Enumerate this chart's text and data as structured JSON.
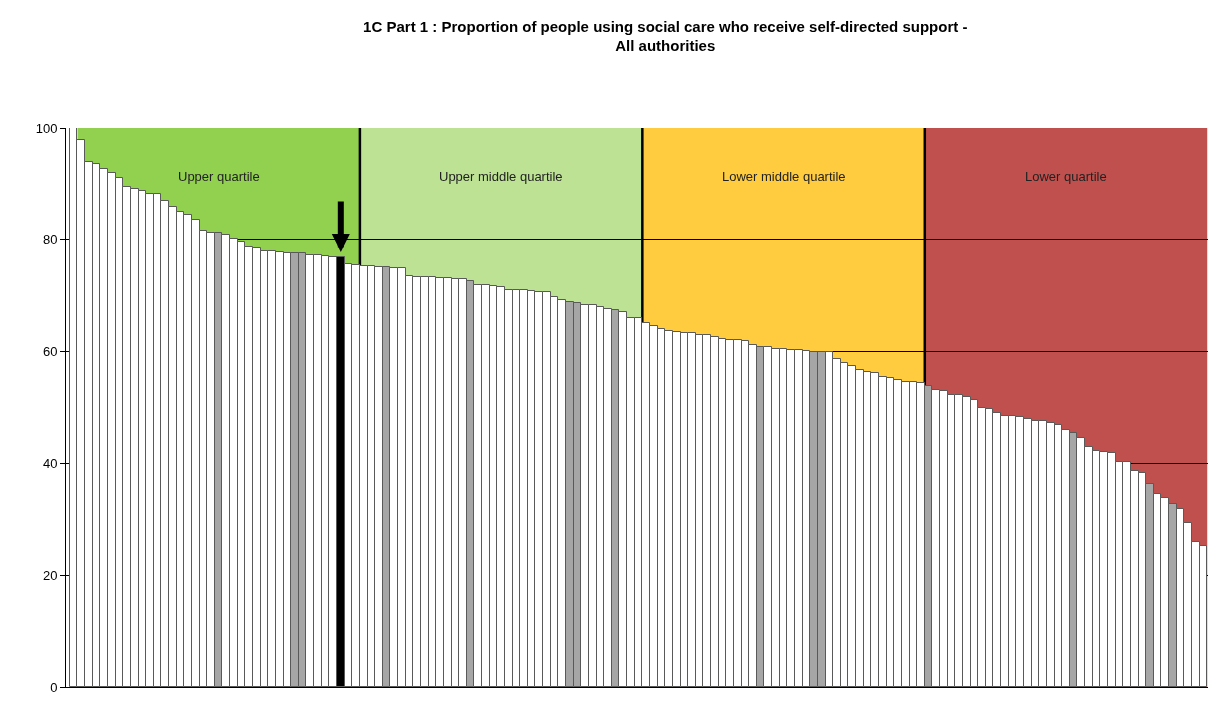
{
  "chart_data": {
    "type": "bar",
    "title": "1C Part 1 : Proportion of people using social care who receive self-directed support - All authorities",
    "categories": [
      null,
      null,
      null,
      null,
      null,
      null,
      null,
      null,
      null,
      null,
      null,
      null,
      null,
      null,
      null,
      null,
      null,
      null,
      null,
      null,
      null,
      null,
      null,
      null,
      null,
      null,
      null,
      null,
      null,
      null,
      null,
      null,
      null,
      null,
      null,
      null,
      null,
      null,
      null,
      null,
      null,
      null,
      null,
      null,
      null,
      null,
      null,
      null,
      null,
      null,
      null,
      null,
      null,
      null,
      null,
      null,
      null,
      null,
      null,
      null,
      null,
      null,
      null,
      null,
      null,
      null,
      null,
      null,
      null,
      null,
      null,
      null,
      null,
      null,
      null,
      null,
      null,
      null,
      null,
      null,
      null,
      null,
      null,
      null,
      null,
      null,
      null,
      null,
      null,
      null,
      null,
      null,
      null,
      null,
      null,
      null,
      null,
      null,
      null,
      null,
      null,
      null,
      null,
      null,
      null,
      null,
      null,
      null,
      null,
      null,
      null,
      null,
      null,
      null,
      null,
      null,
      null,
      null,
      null,
      null,
      null,
      null,
      null,
      null,
      null,
      null,
      null,
      null,
      null,
      null,
      null,
      null,
      null,
      null,
      null,
      null,
      null,
      null,
      null,
      null,
      null,
      null,
      null,
      null,
      null,
      null,
      null,
      null,
      null
    ],
    "values": [
      100,
      97.9,
      94.0,
      93.6,
      92.6,
      92.0,
      91.1,
      89.5,
      89.0,
      88.7,
      88.2,
      88.2,
      87.0,
      85.9,
      85.0,
      84.5,
      83.5,
      81.6,
      81.3,
      81.3,
      80.9,
      80.2,
      79.6,
      78.7,
      78.5,
      78.0,
      78.0,
      77.9,
      77.7,
      77.6,
      77.6,
      77.3,
      77.2,
      77.1,
      77.0,
      77.0,
      75.6,
      75.5,
      75.4,
      75.4,
      75.2,
      75.2,
      75.0,
      75.0,
      73.6,
      73.4,
      73.4,
      73.3,
      73.2,
      73.2,
      73.0,
      72.9,
      72.6,
      72.0,
      72.0,
      71.8,
      71.6,
      71.0,
      71.0,
      71.0,
      70.8,
      70.6,
      70.6,
      69.7,
      69.3,
      68.9,
      68.7,
      68.3,
      68.3,
      67.9,
      67.6,
      67.4,
      67.0,
      66.1,
      66.1,
      65.1,
      64.5,
      64.0,
      63.7,
      63.5,
      63.3,
      63.3,
      63.0,
      63.0,
      62.7,
      62.3,
      62.1,
      62.1,
      61.9,
      61.1,
      60.9,
      60.9,
      60.5,
      60.5,
      60.3,
      60.3,
      60.1,
      59.9,
      59.9,
      59.9,
      58.6,
      58.0,
      57.4,
      56.7,
      56.3,
      56.1,
      55.5,
      55.3,
      54.9,
      54.6,
      54.6,
      54.3,
      53.9,
      53.2,
      52.9,
      52.2,
      52.2,
      51.8,
      51.3,
      50.0,
      49.7,
      49.0,
      48.5,
      48.4,
      48.3,
      48.0,
      47.6,
      47.6,
      47.3,
      46.9,
      45.9,
      45.4,
      44.6,
      43.0,
      42.3,
      42.1,
      41.8,
      40.2,
      40.2,
      38.7,
      38.2,
      36.3,
      34.5,
      33.9,
      32.7,
      31.9,
      29.4,
      26.0,
      25.3
    ],
    "colors": [
      "#ffffff",
      "#ffffff",
      "#ffffff",
      "#ffffff",
      "#ffffff",
      "#ffffff",
      "#ffffff",
      "#ffffff",
      "#ffffff",
      "#ffffff",
      "#ffffff",
      "#ffffff",
      "#ffffff",
      "#ffffff",
      "#ffffff",
      "#ffffff",
      "#ffffff",
      "#ffffff",
      "#ffffff",
      "#a6a6a6",
      "#ffffff",
      "#ffffff",
      "#ffffff",
      "#ffffff",
      "#ffffff",
      "#ffffff",
      "#ffffff",
      "#ffffff",
      "#ffffff",
      "#a6a6a6",
      "#a6a6a6",
      "#ffffff",
      "#ffffff",
      "#ffffff",
      "#ffffff",
      "#000000",
      "#ffffff",
      "#ffffff",
      "#ffffff",
      "#ffffff",
      "#ffffff",
      "#a6a6a6",
      "#ffffff",
      "#ffffff",
      "#ffffff",
      "#ffffff",
      "#ffffff",
      "#ffffff",
      "#ffffff",
      "#ffffff",
      "#ffffff",
      "#ffffff",
      "#a6a6a6",
      "#ffffff",
      "#ffffff",
      "#ffffff",
      "#ffffff",
      "#ffffff",
      "#ffffff",
      "#ffffff",
      "#ffffff",
      "#ffffff",
      "#ffffff",
      "#ffffff",
      "#ffffff",
      "#a6a6a6",
      "#a6a6a6",
      "#ffffff",
      "#ffffff",
      "#ffffff",
      "#ffffff",
      "#a6a6a6",
      "#ffffff",
      "#ffffff",
      "#ffffff",
      "#ffffff",
      "#ffffff",
      "#ffffff",
      "#ffffff",
      "#ffffff",
      "#ffffff",
      "#ffffff",
      "#ffffff",
      "#ffffff",
      "#ffffff",
      "#ffffff",
      "#ffffff",
      "#ffffff",
      "#ffffff",
      "#ffffff",
      "#a6a6a6",
      "#ffffff",
      "#ffffff",
      "#ffffff",
      "#ffffff",
      "#ffffff",
      "#ffffff",
      "#a6a6a6",
      "#a6a6a6",
      "#ffffff",
      "#ffffff",
      "#ffffff",
      "#ffffff",
      "#ffffff",
      "#ffffff",
      "#ffffff",
      "#ffffff",
      "#ffffff",
      "#ffffff",
      "#ffffff",
      "#ffffff",
      "#ffffff",
      "#a6a6a6",
      "#ffffff",
      "#ffffff",
      "#ffffff",
      "#ffffff",
      "#ffffff",
      "#ffffff",
      "#ffffff",
      "#ffffff",
      "#ffffff",
      "#ffffff",
      "#ffffff",
      "#ffffff",
      "#ffffff",
      "#ffffff",
      "#ffffff",
      "#ffffff",
      "#ffffff",
      "#ffffff",
      "#a6a6a6",
      "#ffffff",
      "#ffffff",
      "#ffffff",
      "#ffffff",
      "#ffffff",
      "#ffffff",
      "#ffffff",
      "#ffffff",
      "#ffffff",
      "#a6a6a6",
      "#ffffff",
      "#ffffff",
      "#a6a6a6",
      "#ffffff",
      "#ffffff",
      "#ffffff",
      "#ffffff"
    ],
    "ylim": [
      0,
      100
    ],
    "yticks": [
      0,
      20,
      40,
      60,
      80,
      100
    ],
    "grid": "y",
    "annotations": [
      "Upper quartile",
      "Upper middle quartile",
      "Lower middle quartile",
      "Lower quartile"
    ]
  }
}
